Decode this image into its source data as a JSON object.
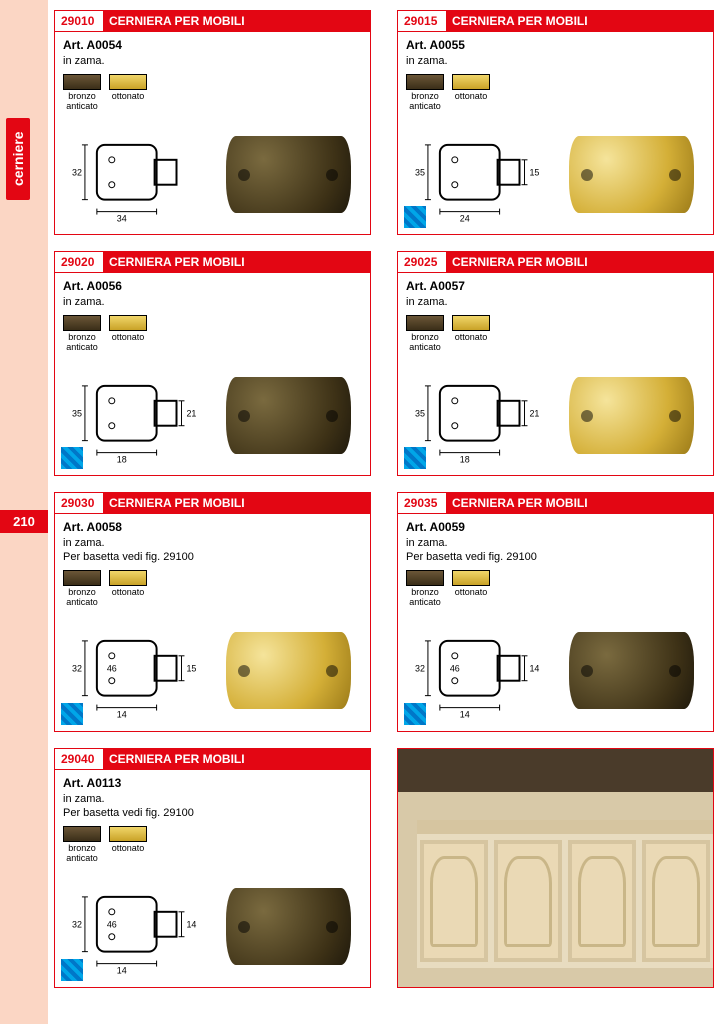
{
  "page": {
    "side_label": "cerniere",
    "number": "210"
  },
  "finishes": {
    "bronze": {
      "label": "bronzo\nanticato",
      "color1": "#6b5637",
      "color2": "#3a2e18"
    },
    "gold": {
      "label": "ottonato",
      "color1": "#f0d66a",
      "color2": "#c9a227"
    }
  },
  "products": [
    {
      "code": "29010",
      "title": "CERNIERA PER MOBILI",
      "article": "Art. A0054",
      "material": "in zama.",
      "note": "",
      "dims": {
        "w": "34",
        "h": "32"
      },
      "photo_tint": "bronze",
      "blue_badge": false
    },
    {
      "code": "29015",
      "title": "CERNIERA PER MOBILI",
      "article": "Art. A0055",
      "material": "in zama.",
      "note": "",
      "dims": {
        "w": "24",
        "h": "35",
        "ext": "15"
      },
      "photo_tint": "gold",
      "blue_badge": true
    },
    {
      "code": "29020",
      "title": "CERNIERA PER MOBILI",
      "article": "Art. A0056",
      "material": "in zama.",
      "note": "",
      "dims": {
        "w": "18",
        "h": "35",
        "ext": "21"
      },
      "photo_tint": "bronze",
      "blue_badge": true
    },
    {
      "code": "29025",
      "title": "CERNIERA PER MOBILI",
      "article": "Art. A0057",
      "material": "in zama.",
      "note": "",
      "dims": {
        "w": "18",
        "h": "35",
        "ext": "21"
      },
      "photo_tint": "gold",
      "blue_badge": true
    },
    {
      "code": "29030",
      "title": "CERNIERA PER MOBILI",
      "article": "Art. A0058",
      "material": "in zama.",
      "note": "Per basetta vedi fig. 29100",
      "dims": {
        "w": "14",
        "h": "32",
        "inner": "46",
        "ext": "15"
      },
      "photo_tint": "gold",
      "blue_badge": true
    },
    {
      "code": "29035",
      "title": "CERNIERA PER MOBILI",
      "article": "Art. A0059",
      "material": "in zama.",
      "note": "Per basetta vedi fig. 29100",
      "dims": {
        "w": "14",
        "h": "32",
        "inner": "46",
        "ext": "14"
      },
      "photo_tint": "bronze",
      "blue_badge": true
    },
    {
      "code": "29040",
      "title": "CERNIERA PER MOBILI",
      "article": "Art. A0113",
      "material": "in zama.",
      "note": "Per basetta vedi fig. 29100",
      "dims": {
        "w": "14",
        "h": "32",
        "inner": "46",
        "ext": "14"
      },
      "photo_tint": "bronze",
      "blue_badge": true
    }
  ]
}
